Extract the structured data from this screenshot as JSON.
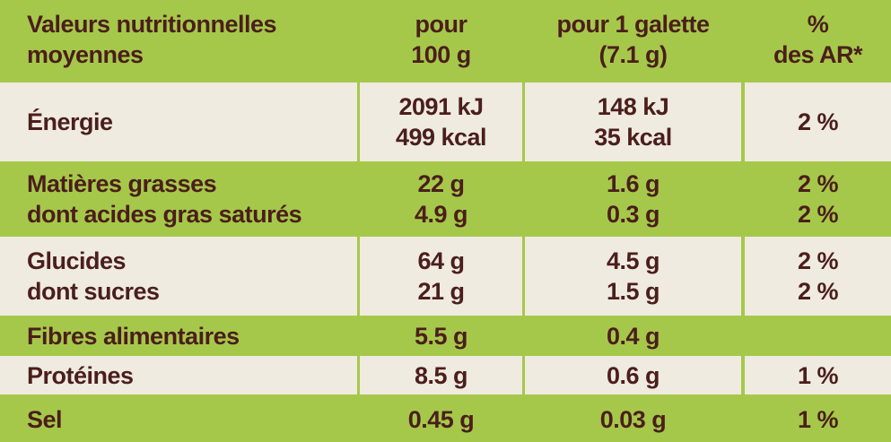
{
  "table": {
    "header": [
      [
        "Valeurs nutritionnelles",
        "moyennes"
      ],
      [
        "pour",
        "100 g"
      ],
      [
        "pour 1 galette",
        "(7.1 g)"
      ],
      [
        "%",
        "des AR*"
      ]
    ],
    "rows": [
      [
        [
          "Énergie"
        ],
        [
          "2091 kJ",
          "499 kcal"
        ],
        [
          "148 kJ",
          "35 kcal"
        ],
        [
          "2 %"
        ]
      ],
      [
        [
          "Matières grasses",
          "dont acides gras saturés"
        ],
        [
          "22 g",
          "4.9 g"
        ],
        [
          "1.6 g",
          "0.3 g"
        ],
        [
          "2 %",
          "2 %"
        ]
      ],
      [
        [
          "Glucides",
          "dont sucres"
        ],
        [
          "64 g",
          "21 g"
        ],
        [
          "4.5 g",
          "1.5 g"
        ],
        [
          "2 %",
          "2 %"
        ]
      ],
      [
        [
          "Fibres alimentaires"
        ],
        [
          "5.5 g"
        ],
        [
          "0.4 g"
        ],
        []
      ],
      [
        [
          "Protéines"
        ],
        [
          "8.5 g"
        ],
        [
          "0.6 g"
        ],
        [
          "1 %"
        ]
      ],
      [
        [
          "Sel"
        ],
        [
          "0.45 g"
        ],
        [
          "0.03 g"
        ],
        [
          "1 %"
        ]
      ]
    ]
  }
}
